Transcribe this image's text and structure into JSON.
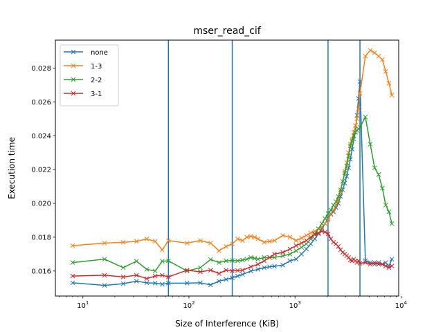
{
  "chart_data": {
    "type": "line",
    "title": "mser_read_cif",
    "xlabel": "Size of Interference (KiB)",
    "ylabel": "Execution time",
    "xscale": "log",
    "xlim": [
      5.5,
      9500
    ],
    "ylim": [
      0.01452,
      0.02965
    ],
    "x_ticks": [
      {
        "value": 10,
        "base": "10",
        "exp": "1"
      },
      {
        "value": 100,
        "base": "10",
        "exp": "2"
      },
      {
        "value": 1000,
        "base": "10",
        "exp": "3"
      },
      {
        "value": 10000,
        "base": "10",
        "exp": "4"
      }
    ],
    "y_ticks": [
      0.016,
      0.018,
      0.02,
      0.022,
      0.024,
      0.026,
      0.028
    ],
    "y_tick_labels": [
      "0.016",
      "0.018",
      "0.020",
      "0.022",
      "0.024",
      "0.026",
      "0.028"
    ],
    "vlines": [
      64,
      256,
      2048,
      4096
    ],
    "vline_color": "#1f77b4",
    "legend_position": "upper-left",
    "marker": "x",
    "series": [
      {
        "name": "none",
        "color": "#1f77b4",
        "x": [
          8,
          16,
          24,
          32,
          40,
          48,
          56,
          64,
          96,
          128,
          160,
          192,
          224,
          256,
          288,
          320,
          384,
          448,
          512,
          576,
          640,
          768,
          896,
          1024,
          1152,
          1280,
          1408,
          1536,
          1664,
          1792,
          1920,
          2048,
          2176,
          2304,
          2432,
          2560,
          2688,
          2816,
          2944,
          3072,
          3200,
          3328,
          3456,
          3584,
          3712,
          3840,
          3968,
          4096,
          4608,
          5120,
          5632,
          6144,
          6656,
          7168,
          7680,
          8192
        ],
        "y": [
          0.0153,
          0.01515,
          0.01525,
          0.0154,
          0.0153,
          0.01528,
          0.01522,
          0.01528,
          0.01528,
          0.0153,
          0.01518,
          0.0154,
          0.0155,
          0.0156,
          0.0157,
          0.0158,
          0.016,
          0.0161,
          0.0162,
          0.01625,
          0.01628,
          0.01635,
          0.0166,
          0.0167,
          0.017,
          0.0173,
          0.0176,
          0.0179,
          0.0182,
          0.0185,
          0.0188,
          0.0191,
          0.01935,
          0.0195,
          0.01975,
          0.02,
          0.0204,
          0.0208,
          0.0212,
          0.0216,
          0.0221,
          0.0226,
          0.0232,
          0.0238,
          0.0242,
          0.0252,
          0.0262,
          0.0272,
          0.0166,
          0.0165,
          0.0164,
          0.0165,
          0.0164,
          0.0165,
          0.0163,
          0.0167
        ]
      },
      {
        "name": "1-3",
        "color": "#ff7f0e",
        "x": [
          8,
          16,
          24,
          32,
          40,
          48,
          56,
          64,
          96,
          128,
          160,
          192,
          224,
          256,
          288,
          320,
          352,
          384,
          416,
          448,
          512,
          576,
          640,
          768,
          896,
          1024,
          1152,
          1280,
          1408,
          1536,
          1664,
          1792,
          1920,
          2048,
          2176,
          2304,
          2432,
          2560,
          2688,
          2816,
          2944,
          3072,
          3200,
          3328,
          3456,
          3584,
          3712,
          3840,
          3968,
          4096,
          4608,
          5120,
          5632,
          6144,
          6656,
          7168,
          7680,
          8192
        ],
        "y": [
          0.0175,
          0.01765,
          0.0177,
          0.01775,
          0.0179,
          0.01775,
          0.01725,
          0.0178,
          0.01765,
          0.0178,
          0.01765,
          0.0172,
          0.01745,
          0.0176,
          0.0179,
          0.0178,
          0.018,
          0.01805,
          0.018,
          0.0179,
          0.0177,
          0.01775,
          0.0178,
          0.0181,
          0.018,
          0.0178,
          0.01795,
          0.0181,
          0.01825,
          0.01835,
          0.0185,
          0.0186,
          0.0188,
          0.019,
          0.0194,
          0.0196,
          0.0199,
          0.0202,
          0.0207,
          0.0213,
          0.0219,
          0.0224,
          0.023,
          0.0235,
          0.0238,
          0.0242,
          0.0246,
          0.025,
          0.0256,
          0.0265,
          0.0287,
          0.02905,
          0.0289,
          0.0287,
          0.0285,
          0.0278,
          0.0271,
          0.0264
        ]
      },
      {
        "name": "2-2",
        "color": "#2ca02c",
        "x": [
          8,
          16,
          24,
          32,
          40,
          48,
          56,
          64,
          96,
          128,
          160,
          192,
          224,
          256,
          288,
          320,
          352,
          384,
          416,
          448,
          512,
          576,
          640,
          768,
          896,
          1024,
          1152,
          1280,
          1408,
          1536,
          1664,
          1792,
          1920,
          2048,
          2176,
          2304,
          2432,
          2560,
          2688,
          2816,
          2944,
          3072,
          3200,
          3328,
          3456,
          3584,
          3712,
          3840,
          3968,
          4096,
          4608,
          5120,
          5632,
          6144,
          6656,
          7168,
          7680,
          8192
        ],
        "y": [
          0.0165,
          0.0167,
          0.0162,
          0.01658,
          0.0161,
          0.016,
          0.01658,
          0.0166,
          0.016,
          0.0162,
          0.01668,
          0.0165,
          0.0166,
          0.01662,
          0.0166,
          0.01665,
          0.0167,
          0.0168,
          0.01675,
          0.0167,
          0.0168,
          0.0168,
          0.0168,
          0.0169,
          0.017,
          0.0172,
          0.0174,
          0.0176,
          0.0179,
          0.0182,
          0.0185,
          0.0188,
          0.0191,
          0.0194,
          0.0196,
          0.0199,
          0.0201,
          0.0204,
          0.0208,
          0.0213,
          0.0218,
          0.0222,
          0.0228,
          0.0234,
          0.0237,
          0.024,
          0.0242,
          0.0243,
          0.0244,
          0.0245,
          0.0251,
          0.0235,
          0.0221,
          0.0217,
          0.0209,
          0.0199,
          0.0195,
          0.0188
        ]
      },
      {
        "name": "3-1",
        "color": "#d62728",
        "x": [
          8,
          16,
          24,
          32,
          40,
          48,
          56,
          64,
          96,
          128,
          160,
          192,
          224,
          256,
          288,
          320,
          384,
          448,
          512,
          576,
          640,
          768,
          896,
          1024,
          1152,
          1280,
          1408,
          1536,
          1664,
          1792,
          1920,
          2048,
          2176,
          2304,
          2432,
          2560,
          2688,
          2816,
          2944,
          3072,
          3200,
          3328,
          3456,
          3584,
          3712,
          3840,
          3968,
          4096,
          4608,
          5120,
          5632,
          6144,
          6656,
          7168,
          7680,
          8192
        ],
        "y": [
          0.0157,
          0.01575,
          0.01565,
          0.01575,
          0.01555,
          0.0157,
          0.01575,
          0.01565,
          0.01605,
          0.01595,
          0.01605,
          0.01585,
          0.01605,
          0.016,
          0.01603,
          0.01605,
          0.01625,
          0.0164,
          0.0166,
          0.0168,
          0.017,
          0.0171,
          0.0173,
          0.0175,
          0.01765,
          0.0178,
          0.018,
          0.01815,
          0.01825,
          0.01835,
          0.0183,
          0.0182,
          0.0179,
          0.0177,
          0.0176,
          0.01745,
          0.01725,
          0.0171,
          0.017,
          0.0169,
          0.0168,
          0.01665,
          0.0166,
          0.0167,
          0.0166,
          0.0165,
          0.0166,
          0.01645,
          0.0165,
          0.0164,
          0.0165,
          0.0164,
          0.0164,
          0.0163,
          0.0162,
          0.0163
        ]
      }
    ]
  }
}
